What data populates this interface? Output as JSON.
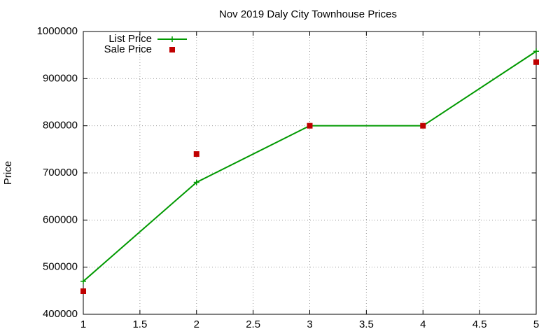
{
  "chart_data": {
    "type": "line",
    "title": "Nov 2019 Daly City Townhouse Prices",
    "y_label": "Price",
    "x": [
      1,
      2,
      3,
      4,
      5
    ],
    "series": [
      {
        "name": "List Price",
        "color": "#009900",
        "marker": "plus",
        "line": true,
        "values": [
          470000,
          680000,
          800000,
          800000,
          958000
        ]
      },
      {
        "name": "Sale Price",
        "color": "#c00000",
        "marker": "square",
        "line": false,
        "values": [
          449000,
          740000,
          800000,
          800000,
          935000
        ]
      }
    ],
    "xlim": [
      1,
      5
    ],
    "xticks": [
      1,
      1.5,
      2,
      2.5,
      3,
      3.5,
      4,
      4.5,
      5
    ],
    "ylim": [
      400000,
      1000000
    ],
    "yticks": [
      400000,
      500000,
      600000,
      700000,
      800000,
      900000,
      1000000
    ],
    "grid": true,
    "legend": "top-left"
  }
}
